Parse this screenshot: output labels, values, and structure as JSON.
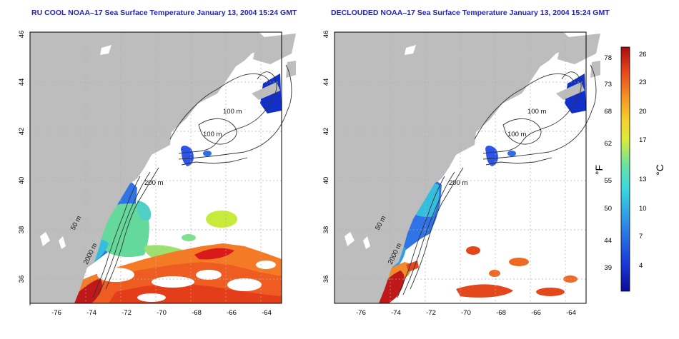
{
  "titles": {
    "left": "RU COOL NOAA–17 Sea Surface Temperature January 13, 2004 15:24 GMT",
    "right": "DECLOUDED NOAA–17 Sea Surface Temperature January 13, 2004 15:24 GMT"
  },
  "axes": {
    "lon_ticks": [
      "-76",
      "-74",
      "-72",
      "-70",
      "-68",
      "-66",
      "-64"
    ],
    "lat_ticks": [
      "36",
      "38",
      "40",
      "42",
      "44",
      "46"
    ]
  },
  "contour_labels": {
    "left": [
      "100 m",
      "100 m",
      "200 m",
      "50 m",
      "2000 m"
    ],
    "right": [
      "100 m",
      "100 m",
      "200 m",
      "50 m",
      "2000 m"
    ]
  },
  "colorbar": {
    "f_label": "°F",
    "c_label": "°C",
    "f_ticks": [
      "78",
      "73",
      "68",
      "62",
      "55",
      "50",
      "44",
      "39"
    ],
    "c_ticks": [
      "26",
      "23",
      "20",
      "17",
      "13",
      "10",
      "7",
      "4"
    ]
  },
  "colors": {
    "land": "#bdbdbd",
    "title": "#2424b0",
    "grid": "#b0b0b0"
  }
}
